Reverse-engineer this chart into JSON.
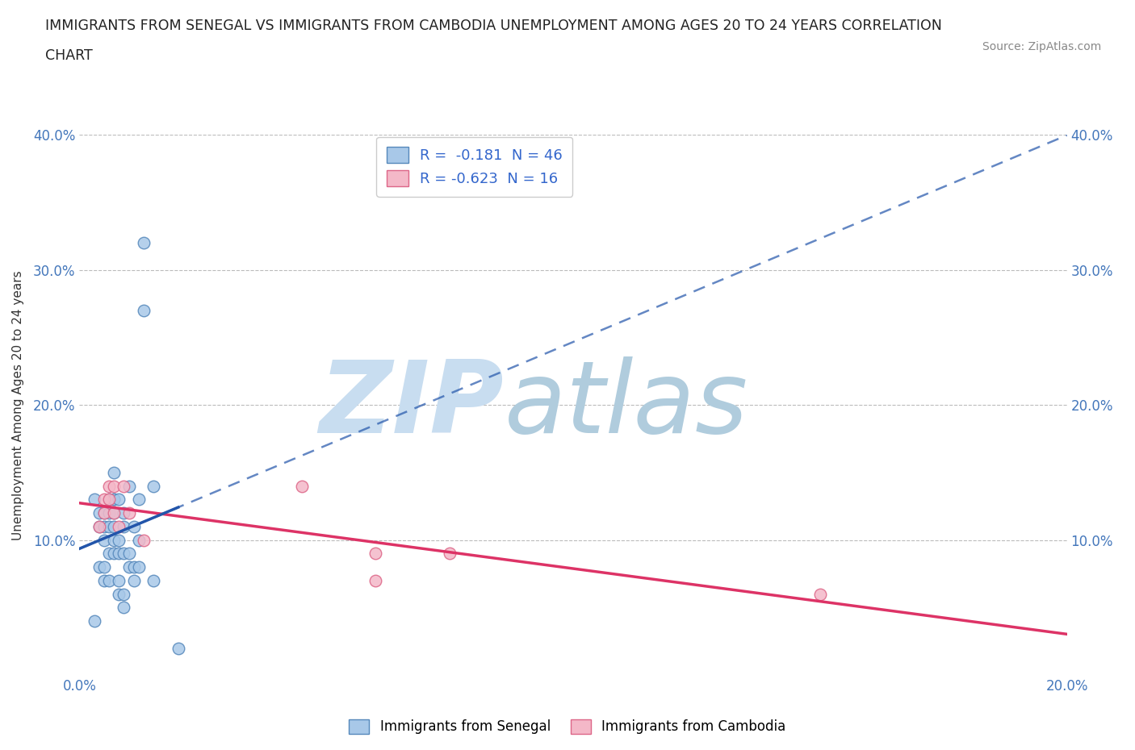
{
  "title_line1": "IMMIGRANTS FROM SENEGAL VS IMMIGRANTS FROM CAMBODIA UNEMPLOYMENT AMONG AGES 20 TO 24 YEARS CORRELATION",
  "title_line2": "CHART",
  "source_text": "Source: ZipAtlas.com",
  "ylabel": "Unemployment Among Ages 20 to 24 years",
  "xlim": [
    0.0,
    0.2
  ],
  "ylim": [
    0.0,
    0.4
  ],
  "senegal_color": "#a8c8e8",
  "senegal_edge": "#5588bb",
  "cambodia_color": "#f4b8c8",
  "cambodia_edge": "#dd6688",
  "senegal_R": -0.181,
  "senegal_N": 46,
  "cambodia_R": -0.623,
  "cambodia_N": 16,
  "senegal_line_color": "#2255aa",
  "cambodia_line_color": "#dd3366",
  "watermark_zip": "ZIP",
  "watermark_atlas": "atlas",
  "watermark_color_zip": "#c8ddf0",
  "watermark_color_atlas": "#b0ccdd",
  "background_color": "#ffffff",
  "grid_color": "#bbbbbb",
  "senegal_x": [
    0.003,
    0.004,
    0.004,
    0.004,
    0.005,
    0.005,
    0.005,
    0.005,
    0.005,
    0.006,
    0.006,
    0.006,
    0.006,
    0.006,
    0.007,
    0.007,
    0.007,
    0.007,
    0.007,
    0.007,
    0.007,
    0.008,
    0.008,
    0.008,
    0.008,
    0.008,
    0.009,
    0.009,
    0.009,
    0.009,
    0.009,
    0.01,
    0.01,
    0.01,
    0.011,
    0.011,
    0.011,
    0.012,
    0.012,
    0.012,
    0.013,
    0.013,
    0.015,
    0.015,
    0.02,
    0.003
  ],
  "senegal_y": [
    0.13,
    0.11,
    0.12,
    0.08,
    0.1,
    0.12,
    0.08,
    0.11,
    0.07,
    0.12,
    0.11,
    0.13,
    0.09,
    0.07,
    0.15,
    0.13,
    0.13,
    0.12,
    0.11,
    0.1,
    0.09,
    0.13,
    0.1,
    0.09,
    0.07,
    0.06,
    0.12,
    0.11,
    0.09,
    0.06,
    0.05,
    0.14,
    0.09,
    0.08,
    0.11,
    0.08,
    0.07,
    0.13,
    0.1,
    0.08,
    0.32,
    0.27,
    0.14,
    0.07,
    0.02,
    0.04
  ],
  "cambodia_x": [
    0.004,
    0.005,
    0.005,
    0.006,
    0.006,
    0.007,
    0.007,
    0.008,
    0.009,
    0.01,
    0.013,
    0.045,
    0.06,
    0.075,
    0.06,
    0.15
  ],
  "cambodia_y": [
    0.11,
    0.13,
    0.12,
    0.14,
    0.13,
    0.14,
    0.12,
    0.11,
    0.14,
    0.12,
    0.1,
    0.14,
    0.09,
    0.09,
    0.07,
    0.06
  ]
}
